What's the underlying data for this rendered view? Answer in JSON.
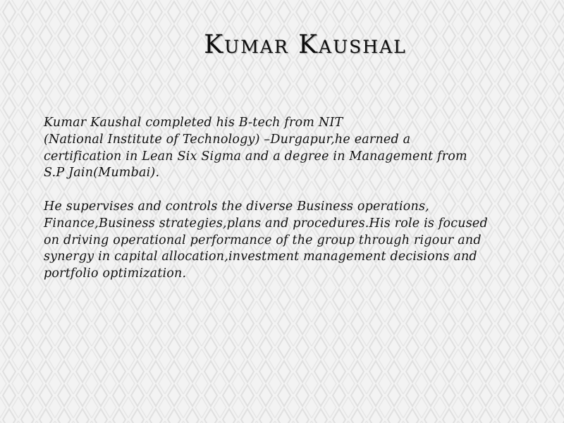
{
  "slide": {
    "title": "Kumar Kaushal",
    "paragraphs": [
      {
        "lines": [
          "Kumar Kaushal completed his B-tech from NIT",
          "(National Institute of Technology) –Durgapur,he earned a",
          "certification in Lean Six Sigma and a degree in Management from",
          "S.P Jain(Mumbai)."
        ]
      },
      {
        "lines": [
          "He supervises and controls the diverse Business operations,",
          "Finance,Business strategies,plans and procedures.His role is focused",
          "on driving operational performance of the group through rigour and",
          "synergy in capital allocation,investment management decisions and",
          "portfolio optimization."
        ]
      }
    ]
  },
  "colors": {
    "background": "#f2f2f2",
    "pattern": "#e2e2e2",
    "text": "#111111"
  }
}
